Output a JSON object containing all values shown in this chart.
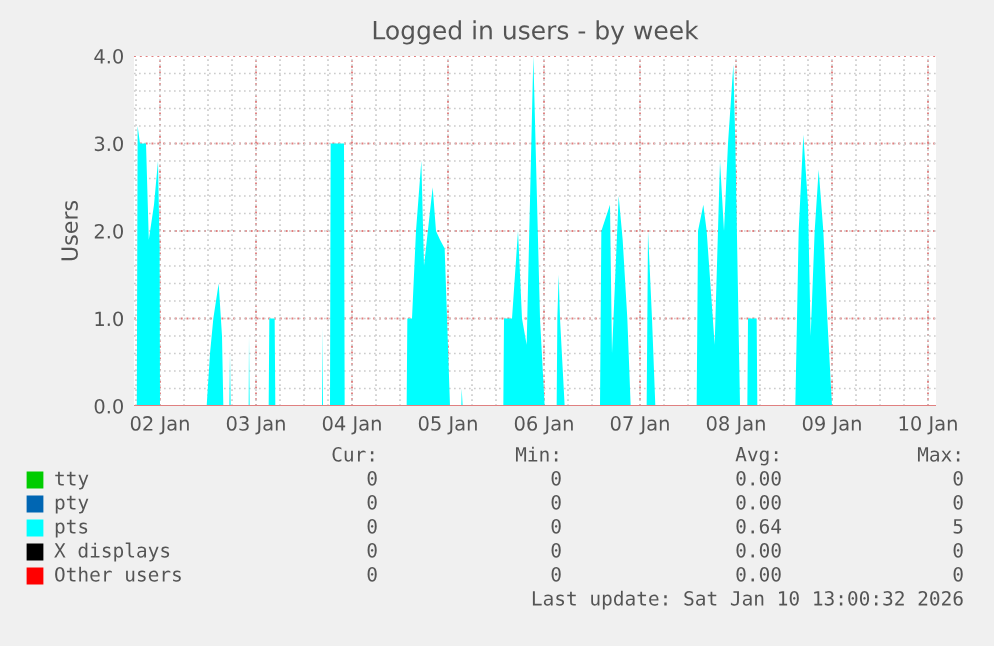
{
  "chart_data": {
    "type": "area",
    "title": "Logged in users - by week",
    "ylabel": "Users",
    "xlim": [
      "2026-01-01T17:30",
      "2026-01-10T02:00"
    ],
    "xticks": [
      {
        "value": "2026-01-02",
        "label": "02 Jan"
      },
      {
        "value": "2026-01-03",
        "label": "03 Jan"
      },
      {
        "value": "2026-01-04",
        "label": "04 Jan"
      },
      {
        "value": "2026-01-05",
        "label": "05 Jan"
      },
      {
        "value": "2026-01-06",
        "label": "06 Jan"
      },
      {
        "value": "2026-01-07",
        "label": "07 Jan"
      },
      {
        "value": "2026-01-08",
        "label": "08 Jan"
      },
      {
        "value": "2026-01-09",
        "label": "09 Jan"
      },
      {
        "value": "2026-01-10",
        "label": "10 Jan"
      }
    ],
    "ylim": [
      0,
      4
    ],
    "yticks": [
      {
        "value": 0,
        "label": "0.0"
      },
      {
        "value": 1,
        "label": "1.0"
      },
      {
        "value": 2,
        "label": "2.0"
      },
      {
        "value": 3,
        "label": "3.0"
      },
      {
        "value": 4,
        "label": "4.0"
      }
    ],
    "grid": true,
    "legend": "bottom",
    "series": [
      {
        "name": "tty",
        "color": "#00cc00"
      },
      {
        "name": "pty",
        "color": "#0066b3"
      },
      {
        "name": "pts",
        "color": "#00ffff",
        "x": [
          "2026-01-01T18:12",
          "2026-01-01T18:24",
          "2026-01-01T19:00",
          "2026-01-01T20:30",
          "2026-01-01T21:12",
          "2026-01-01T22:30",
          "2026-01-01T23:30",
          "2026-01-01T23:54",
          "2026-01-02T00:00",
          "2026-01-02T11:40",
          "2026-01-02T12:30",
          "2026-01-02T13:20",
          "2026-01-02T14:40",
          "2026-01-02T15:30",
          "2026-01-02T15:50",
          "2026-01-02T17:20",
          "2026-01-02T17:30",
          "2026-01-02T17:40",
          "2026-01-02T22:10",
          "2026-01-02T22:15",
          "2026-01-02T22:25",
          "2026-01-03T03:10",
          "2026-01-03T03:20",
          "2026-01-03T04:40",
          "2026-01-03T04:50",
          "2026-01-03T16:30",
          "2026-01-03T16:35",
          "2026-01-03T16:45",
          "2026-01-03T18:30",
          "2026-01-03T18:40",
          "2026-01-03T22:00",
          "2026-01-03T22:10",
          "2026-01-04T13:40",
          "2026-01-04T13:50",
          "2026-01-04T15:00",
          "2026-01-04T16:00",
          "2026-01-04T17:20",
          "2026-01-04T18:00",
          "2026-01-04T20:10",
          "2026-01-04T21:00",
          "2026-01-04T22:00",
          "2026-01-04T23:10",
          "2026-01-05T00:30",
          "2026-01-05T03:20",
          "2026-01-05T03:25",
          "2026-01-05T03:40",
          "2026-01-05T13:50",
          "2026-01-05T14:00",
          "2026-01-05T16:00",
          "2026-01-05T17:30",
          "2026-01-05T18:30",
          "2026-01-05T19:40",
          "2026-01-05T21:20",
          "2026-01-05T23:00",
          "2026-01-06T00:10",
          "2026-01-06T03:10",
          "2026-01-06T03:20",
          "2026-01-06T03:40",
          "2026-01-06T04:00",
          "2026-01-06T05:10",
          "2026-01-06T14:00",
          "2026-01-06T14:20",
          "2026-01-06T16:30",
          "2026-01-06T17:00",
          "2026-01-06T18:40",
          "2026-01-06T19:40",
          "2026-01-06T20:50",
          "2026-01-06T21:40",
          "2026-01-07T01:40",
          "2026-01-07T02:00",
          "2026-01-07T03:00",
          "2026-01-07T03:50",
          "2026-01-07T14:10",
          "2026-01-07T14:30",
          "2026-01-07T15:50",
          "2026-01-07T16:40",
          "2026-01-07T18:40",
          "2026-01-07T20:00",
          "2026-01-07T21:00",
          "2026-01-07T22:00",
          "2026-01-07T23:20",
          "2026-01-07T23:50",
          "2026-01-08T01:00",
          "2026-01-08T02:50",
          "2026-01-08T03:00",
          "2026-01-08T05:10",
          "2026-01-08T05:20",
          "2026-01-08T14:50",
          "2026-01-08T15:40",
          "2026-01-08T16:50",
          "2026-01-08T18:00",
          "2026-01-08T18:40",
          "2026-01-08T19:40",
          "2026-01-08T20:40",
          "2026-01-08T21:50",
          "2026-01-08T22:50",
          "2026-01-09T00:00"
        ],
        "values": [
          0,
          3.2,
          3.0,
          3.0,
          1.9,
          2.3,
          2.8,
          1.8,
          0,
          0,
          0.6,
          1.0,
          1.4,
          0.8,
          0,
          0,
          0.6,
          0,
          0,
          0.8,
          0,
          0,
          1.0,
          1.0,
          0,
          0,
          0.9,
          0,
          0,
          3.0,
          3.0,
          0,
          0,
          1.0,
          1.0,
          2.0,
          2.8,
          1.6,
          2.5,
          2.0,
          1.9,
          1.8,
          0,
          0,
          0.2,
          0,
          0,
          1.0,
          1.0,
          2.0,
          1.0,
          0.7,
          4.0,
          1.0,
          0,
          0,
          1.0,
          1.5,
          1.0,
          0,
          0,
          2.0,
          2.3,
          0.6,
          2.4,
          1.9,
          1.0,
          0,
          0,
          2.0,
          1.0,
          0,
          0,
          2.0,
          2.3,
          2.0,
          0.7,
          2.8,
          2.0,
          3.0,
          3.9,
          3.0,
          0,
          0,
          1.0,
          1.0,
          0,
          0,
          2.0,
          3.1,
          2.3,
          0.8,
          2.0,
          2.7,
          2.0,
          1.0,
          0
        ]
      },
      {
        "name": "X displays",
        "color": "#000000"
      },
      {
        "name": "Other users",
        "color": "#ff0000"
      }
    ],
    "annotations": [
      "Cur:",
      "Min:",
      "Avg:",
      "Max:",
      "0",
      "0",
      "0.00",
      "0",
      "0",
      "0",
      "0.00",
      "0",
      "0",
      "0",
      "0.64",
      "5",
      "0",
      "0",
      "0.00",
      "0",
      "0",
      "0",
      "0.00",
      "0",
      "Last update: Sat Jan 10 13:00:32 2026"
    ]
  }
}
